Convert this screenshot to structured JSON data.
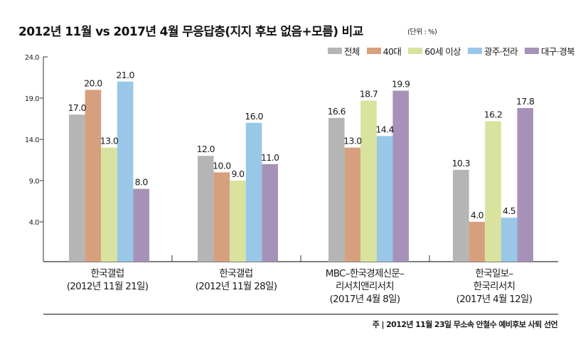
{
  "chart_data": {
    "type": "bar",
    "title": "2012년 11월 vs 2017년 4월 무응답층(지지 후보 없음+모름) 비교",
    "unit": "(단위 : %)",
    "xlabel": "",
    "ylabel": "",
    "ylim": [
      0,
      24.0
    ],
    "yticks": [
      "24.0",
      "19.0",
      "14.0",
      "9.0",
      "4.0"
    ],
    "ytick_values": [
      24,
      19,
      14,
      9,
      4
    ],
    "grid": false,
    "legend_position": "top-right",
    "categories": [
      [
        "한국갤럽",
        "(2012년 11월 21일)"
      ],
      [
        "한국갤럽",
        "(2012년 11월 28일)"
      ],
      [
        "MBC–한국경제신문–",
        "리서치앤리서치",
        "(2017년 4월 8일)"
      ],
      [
        "한국일보–",
        "한국리서치",
        "(2017년 4월 12일)"
      ]
    ],
    "series": [
      {
        "name": "전체",
        "color": "#b4b5b4",
        "values": [
          17.0,
          12.0,
          16.6,
          10.3
        ],
        "labels": [
          "17.0",
          "12.0",
          "16.6",
          "10.3"
        ]
      },
      {
        "name": "40대",
        "color": "#d6a07e",
        "values": [
          20.0,
          10.0,
          13.0,
          4.0
        ],
        "labels": [
          "20.0",
          "10.0",
          "13.0",
          "4.0"
        ]
      },
      {
        "name": "60세 이상",
        "color": "#d9e39d",
        "values": [
          13.0,
          9.0,
          18.7,
          16.2
        ],
        "labels": [
          "13.0",
          "9.0",
          "18.7",
          "16.2"
        ]
      },
      {
        "name": "광주·전라",
        "color": "#98c7e8",
        "values": [
          21.0,
          16.0,
          14.4,
          4.5
        ],
        "labels": [
          "21.0",
          "16.0",
          "14.4",
          "4.5"
        ]
      },
      {
        "name": "대구·경북",
        "color": "#a692b8",
        "values": [
          8.0,
          11.0,
          19.9,
          17.8
        ],
        "labels": [
          "8.0",
          "11.0",
          "19.9",
          "17.8"
        ]
      }
    ],
    "footnote": "주 | 2012년 11월 23일 무소속 안철수 예비후보 사퇴 선언"
  }
}
